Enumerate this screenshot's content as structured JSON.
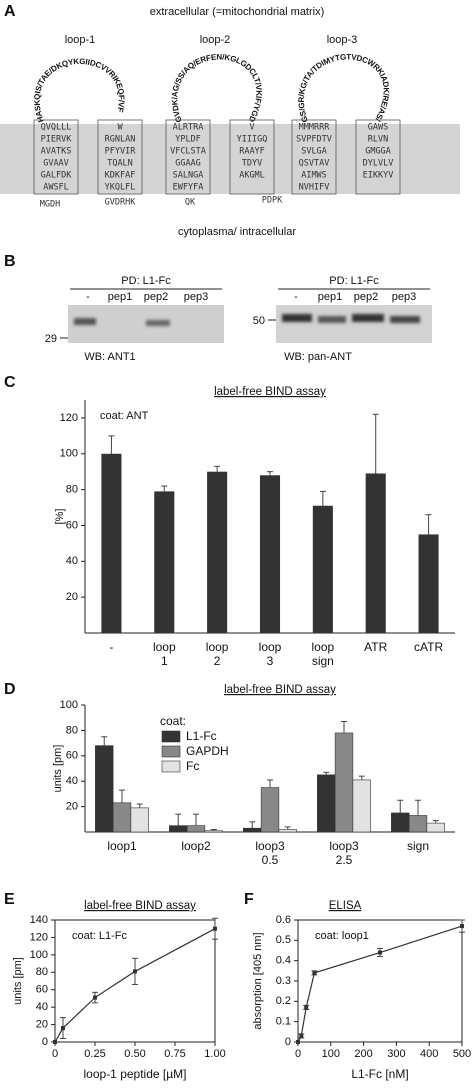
{
  "panel_a": {
    "panel_label": "A",
    "top_label": "extracellular  (=mitochondrial matrix)",
    "bottom_label": "cytoplasma/ intracellular",
    "loops": [
      "loop-1",
      "loop-2",
      "loop-3"
    ],
    "loop_sequences": [
      "HASKQIS/TAE/DKQYKGIIDCVVRIKEQF/VF",
      "GVDK/AG/SS/AQ/ERFEN/KGLGDCLT/VKIF/YGDSKLK/IGLFGQYLS/NVS",
      "GS/GR/KG/TA/TDIMYTGTVDCWRKIADK/RE/AS/N/KFFA"
    ],
    "helices": [
      [
        "QVQLLL",
        "PIERVK",
        "AVATKS",
        "GVAAV",
        "GALFDK",
        "AWSFL"
      ],
      [
        "W",
        "RGNLAN",
        "PFYVIR",
        "TQALN",
        "KDKFAF",
        "YKQLFL"
      ],
      [
        "ALRTRA",
        "YPLDF",
        "VFCLSTA",
        "GGAAG",
        "SALNGA",
        "EWFYFA"
      ],
      [
        "V",
        "YIIIGQ",
        "RAAYF",
        "TDYV",
        "AKGML"
      ],
      [
        "MMMRRR",
        "SVPFDTV",
        "SVLGA",
        "QSVTAV",
        "AIMWS",
        "NVHIFV"
      ],
      [
        "GAWS",
        "RLVN",
        "GMGGA",
        "DYLVLV",
        "EIKKYV"
      ]
    ],
    "cytoplasmic_segments": [
      "MGDH",
      "GVDRHK",
      "QK",
      "PDPK"
    ]
  },
  "panel_b": {
    "panel_label": "B",
    "pulldown": [
      "PD: L1-Fc",
      "PD: L1-Fc"
    ],
    "lanes": [
      "-",
      "pep1",
      "pep2",
      "pep3"
    ],
    "markers": [
      "29",
      "50"
    ],
    "western_blots": [
      "WB: ANT1",
      "WB: pan-ANT"
    ]
  },
  "chart_data": [
    {
      "type": "bar",
      "panel_label": "C",
      "title": "label-free BIND assay",
      "annotation": "coat: ANT",
      "y_label": "[%]",
      "categories": [
        [
          "-"
        ],
        [
          "loop",
          "1"
        ],
        [
          "loop",
          "2"
        ],
        [
          "loop",
          "3"
        ],
        [
          "loop",
          "sign"
        ],
        [
          "ATR"
        ],
        [
          "cATR"
        ]
      ],
      "values": [
        100,
        79,
        90,
        88,
        71,
        89,
        55
      ],
      "errors": [
        10,
        3,
        3,
        2,
        8,
        33,
        11
      ],
      "color": "#333333",
      "ylim": [
        0,
        130
      ],
      "yticks": [
        20,
        40,
        60,
        80,
        100,
        120
      ]
    },
    {
      "type": "grouped_bar",
      "panel_label": "D",
      "title": "label-free BIND assay",
      "legend_title": "coat:",
      "y_label": "units [pm]",
      "categories": [
        [
          "loop1"
        ],
        [
          "loop2"
        ],
        [
          "loop3",
          "0.5"
        ],
        [
          "loop3",
          "2.5"
        ],
        [
          "sign"
        ]
      ],
      "series": [
        {
          "name": "L1-Fc",
          "color": "#333333",
          "values": [
            68,
            5,
            3,
            45,
            15
          ],
          "errors": [
            7,
            9,
            5,
            2,
            10
          ]
        },
        {
          "name": "GAPDH",
          "color": "#888888",
          "values": [
            23,
            5,
            35,
            78,
            13
          ],
          "errors": [
            10,
            9,
            6,
            9,
            12
          ]
        },
        {
          "name": "Fc",
          "color": "#e2e2e2",
          "values": [
            19,
            1,
            2,
            41,
            7
          ],
          "errors": [
            3,
            1,
            2,
            3,
            2
          ]
        }
      ],
      "ylim": [
        0,
        100
      ],
      "yticks": [
        20,
        40,
        60,
        80,
        100
      ]
    },
    {
      "type": "line",
      "panel_label": "E",
      "title": "label-free BIND assay",
      "annotation": "coat: L1-Fc",
      "x_label": "loop-1 peptide [µM]",
      "y_label": "units [pm]",
      "color": "#333333",
      "x": [
        0,
        0.05,
        0.25,
        0.5,
        1.0
      ],
      "values": [
        0,
        16,
        51,
        81,
        130
      ],
      "errors": [
        0,
        12,
        6,
        15,
        12
      ],
      "xlim": [
        0,
        1
      ],
      "xticks": [
        0,
        0.25,
        {
          "value": 0.5,
          "label": "0.50"
        },
        0.75,
        {
          "value": 1,
          "label": "1.00"
        }
      ],
      "ylim": [
        0,
        140
      ],
      "yticks": [
        0,
        20,
        40,
        60,
        80,
        100,
        120,
        140
      ]
    },
    {
      "type": "line",
      "panel_label": "F",
      "title": "ELISA",
      "annotation": "coat: loop1",
      "x_label": "L1-Fc [nM]",
      "y_label": "absorption [405 nm]",
      "color": "#333333",
      "x": [
        0,
        10,
        25,
        50,
        250,
        500
      ],
      "values": [
        0,
        0.03,
        0.17,
        0.34,
        0.44,
        0.57
      ],
      "errors": [
        0,
        0.01,
        0.01,
        0.01,
        0.02,
        0.03
      ],
      "xlim": [
        0,
        500
      ],
      "xticks": [
        0,
        100,
        200,
        300,
        400,
        500
      ],
      "ylim": [
        0,
        0.6
      ],
      "yticks": [
        0,
        0.1,
        0.2,
        0.3,
        0.4,
        0.5,
        0.6
      ]
    }
  ]
}
